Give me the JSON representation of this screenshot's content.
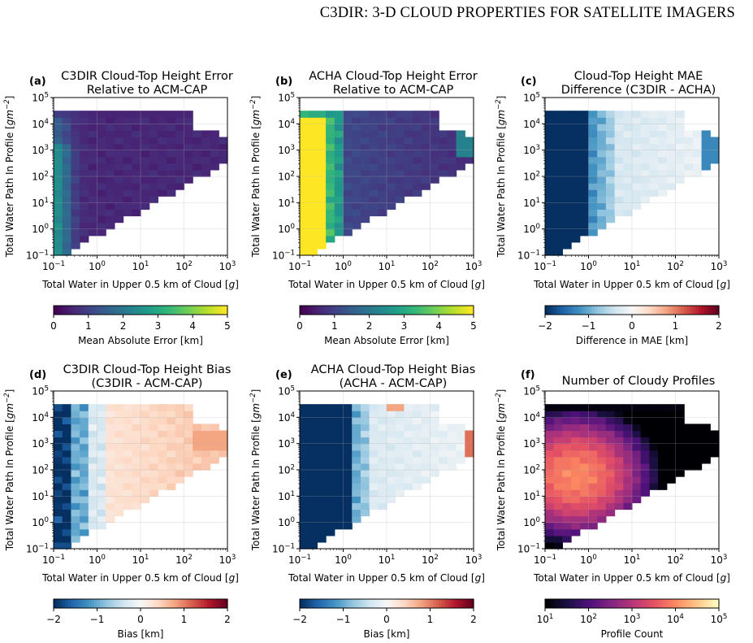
{
  "header": {
    "running_title": "C3DIR: 3-D CLOUD PROPERTIES FOR SATELLITE IMAGERS"
  },
  "colors": {
    "viridis": [
      "#440154",
      "#482878",
      "#3e4989",
      "#31688e",
      "#26828e",
      "#1f9e89",
      "#35b779",
      "#6ece58",
      "#b5de2b",
      "#fde725"
    ],
    "rdbu": [
      "#053061",
      "#2166ac",
      "#4393c3",
      "#92c5de",
      "#d1e5f0",
      "#f7f7f7",
      "#fddbc7",
      "#f4a582",
      "#d6604d",
      "#b2182b",
      "#67001f"
    ],
    "magma": [
      "#000004",
      "#1c1044",
      "#4f127b",
      "#812581",
      "#b5367a",
      "#e55064",
      "#fb8761",
      "#fec287",
      "#fcfdbf"
    ]
  },
  "axes_common": {
    "xlabel": "Total Water in Upper 0.5 km of Cloud [g]",
    "ylabel": "Total Water Path In Profile [gm^-2]",
    "x_ticks": [
      "10^-1",
      "10^0",
      "10^1",
      "10^2",
      "10^3"
    ],
    "y_ticks": [
      "10^-1",
      "10^0",
      "10^1",
      "10^2",
      "10^3",
      "10^4",
      "10^5"
    ]
  },
  "chart_data": [
    {
      "panel": "(a)",
      "type": "heatmap",
      "cmap": "viridis",
      "title": [
        "C3DIR Cloud-Top Height Error",
        "Relative to ACM-CAP"
      ],
      "xlabel": "Total Water in Upper 0.5 km of Cloud [g]",
      "ylabel": "Total Water Path In Profile [gm^-2]",
      "xlim": [
        0.1,
        1000
      ],
      "ylim": [
        0.1,
        100000
      ],
      "xscale": "log",
      "yscale": "log",
      "colorbar": {
        "label": "Mean Absolute Error [km]",
        "range": [
          0,
          5
        ],
        "ticks": [
          "0",
          "1",
          "2",
          "3",
          "4",
          "5"
        ]
      },
      "cell_values_description": "values 0–2.5 km; highest (~2.5) along low-x edge at mid/low WP, mostly ~0.3–0.8 elsewhere"
    },
    {
      "panel": "(b)",
      "type": "heatmap",
      "cmap": "viridis",
      "title": [
        "ACHA Cloud-Top Height Error",
        "Relative to ACM-CAP"
      ],
      "xlabel": "Total Water in Upper 0.5 km of Cloud [g]",
      "ylabel": "Total Water Path In Profile [gm^-2]",
      "xlim": [
        0.1,
        1000
      ],
      "ylim": [
        0.1,
        100000
      ],
      "xscale": "log",
      "yscale": "log",
      "colorbar": {
        "label": "Mean Absolute Error [km]",
        "range": [
          0,
          5
        ],
        "ticks": [
          "0",
          "1",
          "2",
          "3",
          "4",
          "5"
        ]
      },
      "cell_values_description": "saturated ~5 km for x < 0.5 g, falling to ~0.5–1 km for x > 10 g"
    },
    {
      "panel": "(c)",
      "type": "heatmap",
      "cmap": "rdbu",
      "title": [
        "Cloud-Top Height MAE",
        "Difference (C3DIR - ACHA)"
      ],
      "xlabel": "Total Water in Upper 0.5 km of Cloud [g]",
      "ylabel": "Total Water Path In Profile [gm^-2]",
      "xlim": [
        0.1,
        1000
      ],
      "ylim": [
        0.1,
        100000
      ],
      "xscale": "log",
      "yscale": "log",
      "colorbar": {
        "label": "Difference in MAE [km]",
        "range": [
          -2,
          2
        ],
        "ticks": [
          "−2",
          "−1",
          "0",
          "1",
          "2"
        ]
      },
      "cell_values_description": "≤ −2 km for x < 1 g, approaching ~−0.3 km at large x"
    },
    {
      "panel": "(d)",
      "type": "heatmap",
      "cmap": "rdbu",
      "title": [
        "C3DIR Cloud-Top Height Bias",
        "(C3DIR - ACM-CAP)"
      ],
      "xlabel": "Total Water in Upper 0.5 km of Cloud [g]",
      "ylabel": "Total Water Path In Profile [gm^-2]",
      "xlim": [
        0.1,
        1000
      ],
      "ylim": [
        0.1,
        100000
      ],
      "xscale": "log",
      "yscale": "log",
      "colorbar": {
        "label": "Bias [km]",
        "range": [
          -2,
          2
        ],
        "ticks": [
          "−2",
          "−1",
          "0",
          "1",
          "2"
        ]
      },
      "cell_values_description": "negative (~−2) at smallest x, near zero to slightly positive (~+0.5) for x > 1 g"
    },
    {
      "panel": "(e)",
      "type": "heatmap",
      "cmap": "rdbu",
      "title": [
        "ACHA Cloud-Top Height Bias",
        "(ACHA - ACM-CAP)"
      ],
      "xlabel": "Total Water in Upper 0.5 km of Cloud [g]",
      "ylabel": "Total Water Path In Profile [gm^-2]",
      "xlim": [
        0.1,
        1000
      ],
      "ylim": [
        0.1,
        100000
      ],
      "xscale": "log",
      "yscale": "log",
      "colorbar": {
        "label": "Bias [km]",
        "range": [
          -2,
          2
        ],
        "ticks": [
          "−2",
          "−1",
          "0",
          "1",
          "2"
        ]
      },
      "cell_values_description": "≤ −2 km for x < 1.5 g, rising to ~−0.3 km at large x; a few positive cells near top"
    },
    {
      "panel": "(f)",
      "type": "heatmap",
      "cmap": "magma",
      "title": [
        "Number of Cloudy Profiles"
      ],
      "xlabel": "Total Water in Upper 0.5 km of Cloud [g]",
      "ylabel": "Total Water Path In Profile [gm^-2]",
      "xlim": [
        0.1,
        1000
      ],
      "ylim": [
        0.1,
        100000
      ],
      "xscale": "log",
      "yscale": "log",
      "colorbar": {
        "label": "Profile Count",
        "range": [
          10,
          100000
        ],
        "scale": "log",
        "ticks": [
          "10^1",
          "10^2",
          "10^3",
          "10^4",
          "10^5"
        ]
      },
      "cell_values_description": "peak ~1e4 around x 0.1–1 g, WP 10–1000; ~10 counts at top row and at high-x edge"
    }
  ]
}
